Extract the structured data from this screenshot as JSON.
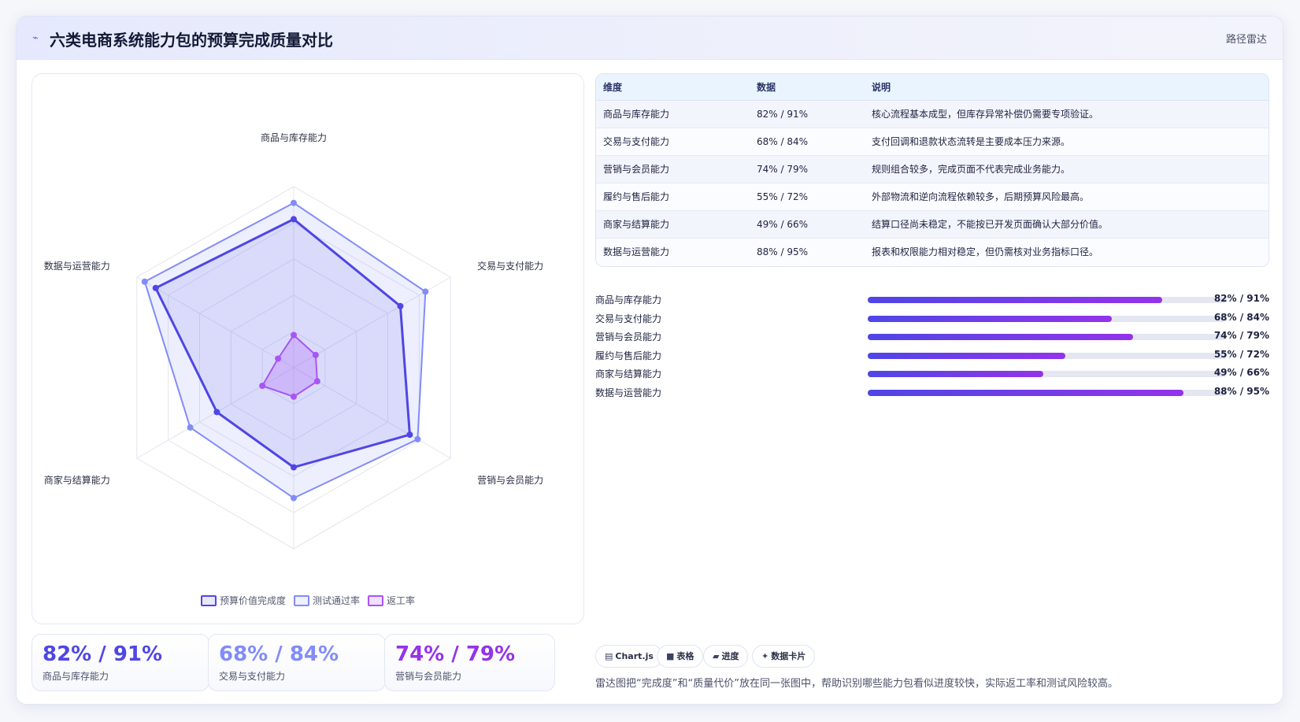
{
  "header": {
    "icon": "sparkle-icon",
    "title": "六类电商系统能力包的预算完成质量对比",
    "tag": "路径雷达"
  },
  "chart_data": {
    "type": "radar",
    "categories": [
      "商品与库存能力",
      "交易与支付能力",
      "营销与会员能力",
      "履约与售后能力",
      "商家与结算能力",
      "数据与运营能力"
    ],
    "range": [
      0,
      100
    ],
    "grid": true,
    "legend_position": "bottom",
    "series": [
      {
        "name": "预算价值完成度",
        "values": [
          82,
          68,
          74,
          55,
          49,
          88
        ],
        "color": "#4f46e5"
      },
      {
        "name": "测试通过率",
        "values": [
          91,
          84,
          79,
          72,
          66,
          95
        ],
        "color": "#818cf8"
      },
      {
        "name": "返工率",
        "values": [
          18,
          14,
          15,
          16,
          20,
          10
        ],
        "color": "#a855f7"
      }
    ]
  },
  "kpis": [
    {
      "value": "82% / 91%",
      "label": "商品与库存能力",
      "color": "#4f46e5"
    },
    {
      "value": "68% / 84%",
      "label": "交易与支付能力",
      "color": "#818cf8"
    },
    {
      "value": "74% / 79%",
      "label": "营销与会员能力",
      "color": "#9333ea"
    }
  ],
  "table": {
    "columns": [
      "维度",
      "数据",
      "说明"
    ],
    "rows": [
      [
        "商品与库存能力",
        "82% / 91%",
        "核心流程基本成型，但库存异常补偿仍需要专项验证。"
      ],
      [
        "交易与支付能力",
        "68% / 84%",
        "支付回调和退款状态流转是主要成本压力来源。"
      ],
      [
        "营销与会员能力",
        "74% / 79%",
        "规则组合较多，完成页面不代表完成业务能力。"
      ],
      [
        "履约与售后能力",
        "55% / 72%",
        "外部物流和逆向流程依赖较多，后期预算风险最高。"
      ],
      [
        "商家与结算能力",
        "49% / 66%",
        "结算口径尚未稳定，不能按已开发页面确认大部分价值。"
      ],
      [
        "数据与运营能力",
        "88% / 95%",
        "报表和权限能力相对稳定，但仍需核对业务指标口径。"
      ]
    ]
  },
  "progress": [
    {
      "label": "商品与库存能力",
      "fill": 0.82,
      "value": "82% / 91%"
    },
    {
      "label": "交易与支付能力",
      "fill": 0.68,
      "value": "68% / 84%"
    },
    {
      "label": "营销与会员能力",
      "fill": 0.74,
      "value": "74% / 79%"
    },
    {
      "label": "履约与售后能力",
      "fill": 0.55,
      "value": "55% / 72%"
    },
    {
      "label": "商家与结算能力",
      "fill": 0.49,
      "value": "49% / 66%"
    },
    {
      "label": "数据与运营能力",
      "fill": 0.88,
      "value": "88% / 95%"
    }
  ],
  "chips": [
    {
      "icon": "chart-icon",
      "glyph": "▤",
      "label": "Chart.js"
    },
    {
      "icon": "table-icon",
      "glyph": "■",
      "label": "表格"
    },
    {
      "icon": "progress-icon",
      "glyph": "▰",
      "label": "进度"
    },
    {
      "icon": "sparkle-icon",
      "glyph": "✦",
      "label": "数据卡片"
    }
  ],
  "note": "雷达图把“完成度”和“质量代价”放在同一张图中，帮助识别哪些能力包看似进度较快，实际返工率和测试风险较高。"
}
